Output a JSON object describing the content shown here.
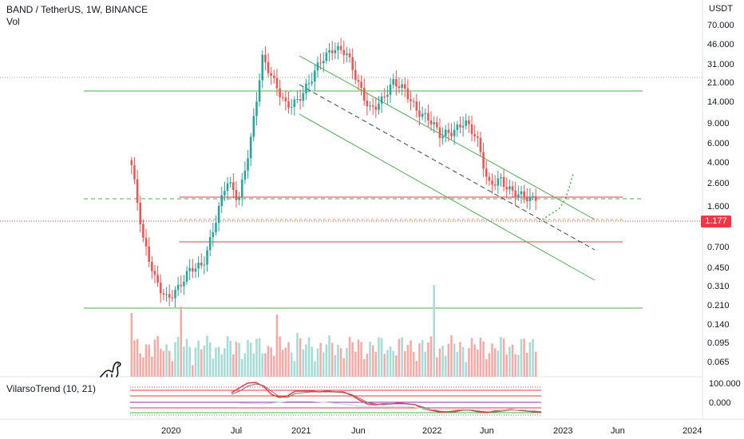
{
  "header": {
    "symbol_line": "BAND / TetherUS, 1W, BINANCE",
    "volume_label": "Vol",
    "indicator_label": "VilarsoTrend (10, 21)"
  },
  "price_axis": {
    "currency": "USDT",
    "ticks": [
      "70.000",
      "46.000",
      "31.000",
      "21.000",
      "14.000",
      "9.000",
      "6.000",
      "4.000",
      "2.600",
      "1.600",
      "0.700",
      "0.450",
      "0.310",
      "0.210",
      "0.140",
      "0.095",
      "0.065"
    ],
    "current_price": "1.177"
  },
  "indicator_axis": {
    "ticks": [
      "100.000",
      "0.000"
    ]
  },
  "time_axis": {
    "ticks": [
      "2020",
      "Jul",
      "2021",
      "Jun",
      "2022",
      "Jun",
      "2023",
      "Jun",
      "2024"
    ]
  },
  "colors": {
    "up": "#26a69a",
    "down": "#ef5350",
    "channel": "#4caf50",
    "resistance": "#f23645",
    "price_line": "#f23645"
  },
  "chart_data": {
    "type": "candlestick",
    "title": "BAND / TetherUS, 1W, BINANCE",
    "xlabel": "",
    "ylabel": "USDT",
    "y_scale": "log",
    "ylim": [
      0.06,
      80
    ],
    "x": [
      "2020",
      "Jul",
      "2021",
      "Jun",
      "2022",
      "Jun",
      "2023",
      "Jun",
      "2024"
    ],
    "close_path": [
      2.2,
      0.55,
      0.3,
      0.22,
      0.25,
      0.35,
      0.4,
      0.8,
      1.6,
      1.2,
      3.5,
      14,
      9,
      6.5,
      7,
      9,
      14,
      18,
      16,
      9,
      6,
      7,
      9,
      8,
      6,
      5,
      3.5,
      4,
      5,
      3.5,
      1.5,
      1.8,
      1.4,
      1.2,
      1.177
    ],
    "last_price": 1.177,
    "legend": "none",
    "grid": false
  },
  "logo": {
    "name": "tradingview-dino"
  }
}
